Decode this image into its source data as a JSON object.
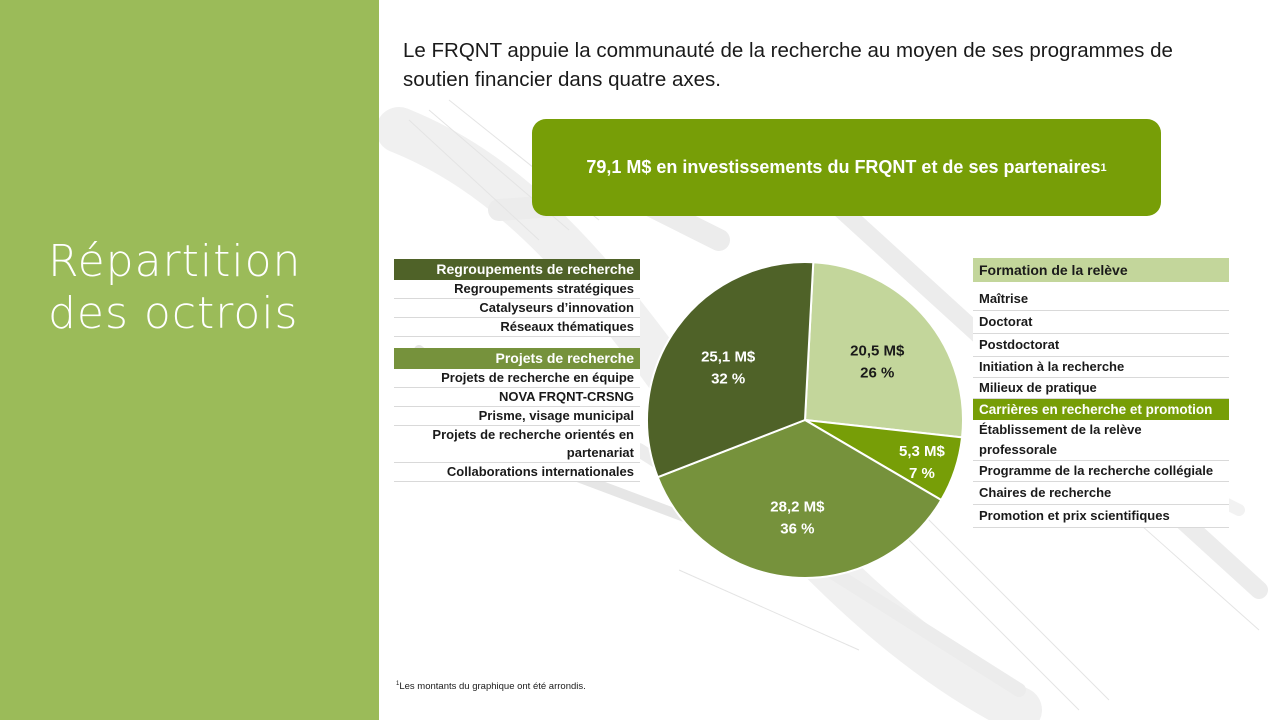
{
  "slide": {
    "title_line1": "Répartition",
    "title_line2": "des octrois",
    "intro": "Le FRQNT appuie la communauté de la recherche au moyen de ses programmes de soutien financier dans quatre axes.",
    "banner_text": "79,1 M$ en investissements du FRQNT et de ses partenaires",
    "banner_sup": "1",
    "footnote_sup": "1",
    "footnote_text": "Les montants du graphique ont été arrondis."
  },
  "left_groups": [
    {
      "header": "Regroupements de recherche",
      "color": "#4f6228",
      "items": [
        "Regroupements stratégiques",
        "Catalyseurs d’innovation",
        "Réseaux thématiques"
      ]
    },
    {
      "header": "Projets de recherche",
      "color": "#76923c",
      "items": [
        "Projets de recherche en équipe",
        "NOVA FRQNT-CRSNG",
        "Prisme, visage municipal",
        "Projets de recherche orientés en partenariat",
        "Collaborations internationales"
      ]
    }
  ],
  "right_groups": [
    {
      "header": "Formation de la relève",
      "color": "#c3d69b",
      "text_color": "#1a1a1a",
      "items": [
        "Maîtrise",
        "Doctorat",
        "Postdoctorat",
        "Initiation à la recherche",
        "Milieux de pratique"
      ]
    },
    {
      "header": "Carrières en recherche et promotion",
      "color": "#779e07",
      "text_color": "#ffffff",
      "items": [
        "Établissement de la relève professorale",
        "Programme de la recherche collégiale",
        "Chaires de recherche",
        "Promotion et prix scientifiques"
      ]
    }
  ],
  "chart_data": {
    "type": "pie",
    "slices": [
      {
        "label": "Formation de la relève",
        "amount": "20,5 M$",
        "percent_label": "26 %",
        "value": 20.5,
        "percent": 26,
        "color": "#c3d69b",
        "text_color": "#1a1a1a"
      },
      {
        "label": "Carrières en recherche et promotion",
        "amount": "5,3 M$",
        "percent_label": "7 %",
        "value": 5.3,
        "percent": 7,
        "color": "#779e07",
        "text_color": "#ffffff"
      },
      {
        "label": "Projets de recherche",
        "amount": "28,2 M$",
        "percent_label": "36 %",
        "value": 28.2,
        "percent": 36,
        "color": "#76923c",
        "text_color": "#ffffff"
      },
      {
        "label": "Regroupements de recherche",
        "amount": "25,1 M$",
        "percent_label": "32 %",
        "value": 25.1,
        "percent": 32,
        "color": "#4f6228",
        "text_color": "#ffffff"
      }
    ]
  }
}
